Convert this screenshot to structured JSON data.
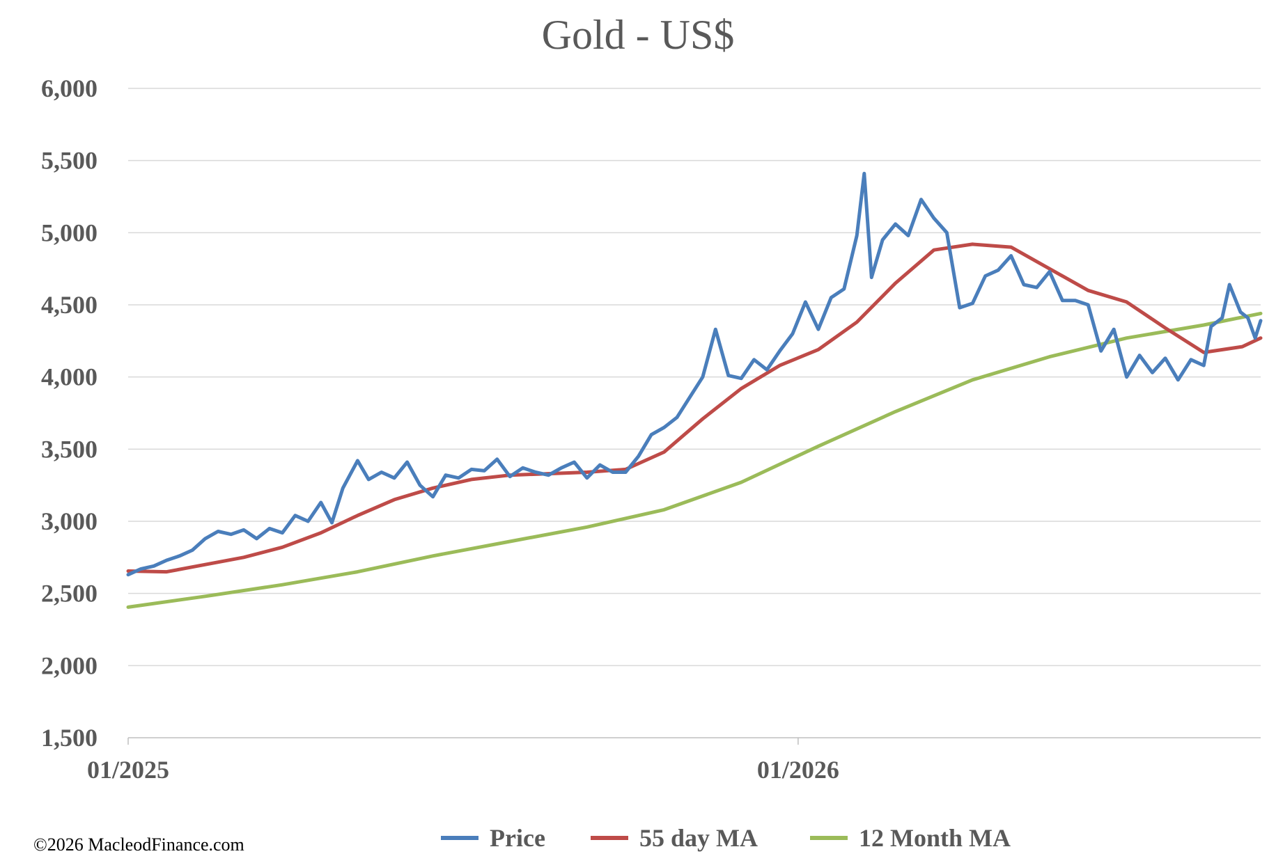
{
  "credit": "©2026 MacleodFinance.com",
  "colors": {
    "price": "#4a7ebb",
    "ma55": "#be4b48",
    "ma12m": "#9bbb59"
  },
  "chart_data": {
    "type": "line",
    "title": "Gold - US$",
    "xlabel": "",
    "ylabel": "",
    "x_ticks": [
      "01/2025",
      "01/2026"
    ],
    "xlim": [
      "2025-01-01",
      "2026-09-10"
    ],
    "ylim": [
      1500,
      6000
    ],
    "y_ticks": [
      1500,
      2000,
      2500,
      3000,
      3500,
      4000,
      4500,
      5000,
      5500,
      6000
    ],
    "y_tick_labels": [
      "1,500",
      "2,000",
      "2,500",
      "3,000",
      "3,500",
      "4,000",
      "4,500",
      "5,000",
      "5,500",
      "6,000"
    ],
    "grid": true,
    "legend_position": "bottom",
    "series": [
      {
        "name": "Price",
        "color": "#4a7ebb",
        "points": [
          [
            "2025-01-01",
            2630
          ],
          [
            "2025-01-08",
            2670
          ],
          [
            "2025-01-15",
            2690
          ],
          [
            "2025-01-22",
            2730
          ],
          [
            "2025-01-29",
            2760
          ],
          [
            "2025-02-05",
            2800
          ],
          [
            "2025-02-12",
            2880
          ],
          [
            "2025-02-19",
            2930
          ],
          [
            "2025-02-26",
            2910
          ],
          [
            "2025-03-05",
            2940
          ],
          [
            "2025-03-12",
            2880
          ],
          [
            "2025-03-19",
            2950
          ],
          [
            "2025-03-26",
            2920
          ],
          [
            "2025-04-02",
            3040
          ],
          [
            "2025-04-09",
            3000
          ],
          [
            "2025-04-16",
            3130
          ],
          [
            "2025-04-22",
            2990
          ],
          [
            "2025-04-28",
            3230
          ],
          [
            "2025-05-06",
            3420
          ],
          [
            "2025-05-12",
            3290
          ],
          [
            "2025-05-19",
            3340
          ],
          [
            "2025-05-26",
            3300
          ],
          [
            "2025-06-02",
            3410
          ],
          [
            "2025-06-09",
            3250
          ],
          [
            "2025-06-16",
            3170
          ],
          [
            "2025-06-23",
            3320
          ],
          [
            "2025-06-30",
            3300
          ],
          [
            "2025-07-07",
            3360
          ],
          [
            "2025-07-14",
            3350
          ],
          [
            "2025-07-21",
            3430
          ],
          [
            "2025-07-28",
            3310
          ],
          [
            "2025-08-04",
            3370
          ],
          [
            "2025-08-11",
            3340
          ],
          [
            "2025-08-18",
            3320
          ],
          [
            "2025-08-25",
            3370
          ],
          [
            "2025-09-01",
            3410
          ],
          [
            "2025-09-08",
            3300
          ],
          [
            "2025-09-15",
            3390
          ],
          [
            "2025-09-22",
            3340
          ],
          [
            "2025-09-29",
            3340
          ],
          [
            "2025-10-06",
            3450
          ],
          [
            "2025-10-13",
            3600
          ],
          [
            "2025-10-20",
            3650
          ],
          [
            "2025-10-27",
            3720
          ],
          [
            "2025-11-03",
            3860
          ],
          [
            "2025-11-10",
            4000
          ],
          [
            "2025-11-17",
            4330
          ],
          [
            "2025-11-24",
            4010
          ],
          [
            "2025-12-01",
            3990
          ],
          [
            "2025-12-08",
            4120
          ],
          [
            "2025-12-15",
            4050
          ],
          [
            "2025-12-22",
            4180
          ],
          [
            "2025-12-29",
            4300
          ],
          [
            "2026-01-05",
            4520
          ],
          [
            "2026-01-12",
            4330
          ],
          [
            "2026-01-19",
            4550
          ],
          [
            "2026-01-26",
            4610
          ],
          [
            "2026-02-02",
            4980
          ],
          [
            "2026-02-06",
            5410
          ],
          [
            "2026-02-10",
            4690
          ],
          [
            "2026-02-16",
            4950
          ],
          [
            "2026-02-23",
            5060
          ],
          [
            "2026-03-02",
            4980
          ],
          [
            "2026-03-09",
            5230
          ],
          [
            "2026-03-16",
            5100
          ],
          [
            "2026-03-23",
            5000
          ],
          [
            "2026-03-30",
            4480
          ],
          [
            "2026-04-06",
            4510
          ],
          [
            "2026-04-13",
            4700
          ],
          [
            "2026-04-20",
            4740
          ],
          [
            "2026-04-27",
            4840
          ],
          [
            "2026-05-04",
            4640
          ],
          [
            "2026-05-11",
            4620
          ],
          [
            "2026-05-18",
            4730
          ],
          [
            "2026-05-25",
            4530
          ],
          [
            "2026-06-01",
            4530
          ],
          [
            "2026-06-08",
            4500
          ],
          [
            "2026-06-15",
            4180
          ],
          [
            "2026-06-22",
            4330
          ],
          [
            "2026-06-29",
            4000
          ],
          [
            "2026-07-06",
            4150
          ],
          [
            "2026-07-13",
            4030
          ],
          [
            "2026-07-20",
            4130
          ],
          [
            "2026-07-27",
            3980
          ],
          [
            "2026-08-03",
            4120
          ],
          [
            "2026-08-10",
            4080
          ],
          [
            "2026-08-14",
            4350
          ],
          [
            "2026-08-20",
            4410
          ],
          [
            "2026-08-24",
            4640
          ],
          [
            "2026-08-30",
            4450
          ],
          [
            "2026-09-03",
            4410
          ],
          [
            "2026-09-07",
            4270
          ],
          [
            "2026-09-10",
            4390
          ]
        ]
      },
      {
        "name": "55 day MA",
        "color": "#be4b48",
        "points": [
          [
            "2025-01-01",
            2655
          ],
          [
            "2025-01-22",
            2650
          ],
          [
            "2025-02-12",
            2700
          ],
          [
            "2025-03-05",
            2750
          ],
          [
            "2025-03-26",
            2820
          ],
          [
            "2025-04-16",
            2920
          ],
          [
            "2025-05-06",
            3040
          ],
          [
            "2025-05-26",
            3150
          ],
          [
            "2025-06-16",
            3230
          ],
          [
            "2025-07-07",
            3290
          ],
          [
            "2025-07-28",
            3320
          ],
          [
            "2025-08-18",
            3330
          ],
          [
            "2025-09-08",
            3340
          ],
          [
            "2025-09-29",
            3360
          ],
          [
            "2025-10-20",
            3480
          ],
          [
            "2025-11-10",
            3710
          ],
          [
            "2025-12-01",
            3920
          ],
          [
            "2025-12-22",
            4080
          ],
          [
            "2026-01-12",
            4190
          ],
          [
            "2026-02-02",
            4380
          ],
          [
            "2026-02-23",
            4650
          ],
          [
            "2026-03-16",
            4880
          ],
          [
            "2026-04-06",
            4920
          ],
          [
            "2026-04-27",
            4900
          ],
          [
            "2026-05-18",
            4750
          ],
          [
            "2026-06-08",
            4600
          ],
          [
            "2026-06-29",
            4520
          ],
          [
            "2026-07-20",
            4340
          ],
          [
            "2026-08-10",
            4170
          ],
          [
            "2026-08-31",
            4210
          ],
          [
            "2026-09-10",
            4270
          ]
        ]
      },
      {
        "name": "12 Month MA",
        "color": "#9bbb59",
        "points": [
          [
            "2025-01-01",
            2405
          ],
          [
            "2025-02-12",
            2480
          ],
          [
            "2025-03-26",
            2560
          ],
          [
            "2025-05-06",
            2650
          ],
          [
            "2025-06-16",
            2760
          ],
          [
            "2025-07-28",
            2860
          ],
          [
            "2025-09-08",
            2960
          ],
          [
            "2025-10-20",
            3080
          ],
          [
            "2025-12-01",
            3270
          ],
          [
            "2026-01-12",
            3520
          ],
          [
            "2026-02-23",
            3760
          ],
          [
            "2026-04-06",
            3980
          ],
          [
            "2026-05-18",
            4140
          ],
          [
            "2026-06-29",
            4270
          ],
          [
            "2026-08-10",
            4360
          ],
          [
            "2026-09-10",
            4440
          ]
        ]
      }
    ]
  }
}
